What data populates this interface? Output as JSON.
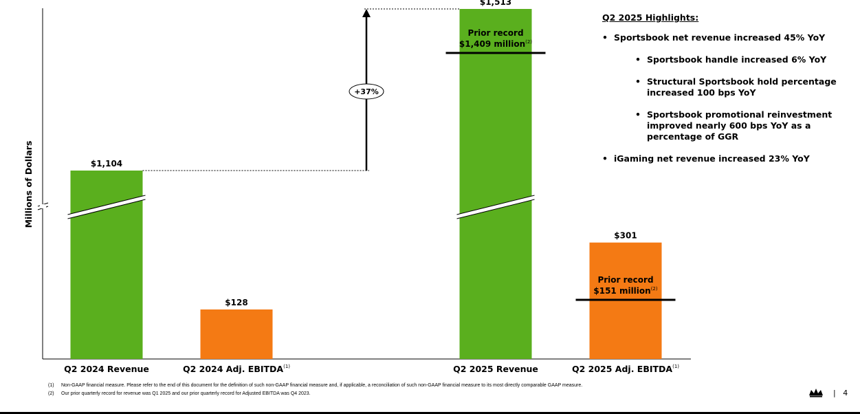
{
  "chart_data": {
    "type": "bar",
    "ylabel": "Millions of Dollars",
    "axis_break": true,
    "categories": [
      "Q2 2024 Revenue",
      "Q2 2024 Adj. EBITDA",
      "Q2 2025 Revenue",
      "Q2 2025 Adj. EBITDA"
    ],
    "category_superscripts": [
      "",
      "(1)",
      "",
      "(1)"
    ],
    "values": [
      1104,
      128,
      1513,
      301
    ],
    "value_labels": [
      "$1,104",
      "$128",
      "$1,513",
      "$301"
    ],
    "colors": [
      "#5aaf1e",
      "#f47a14",
      "#5aaf1e",
      "#f47a14"
    ],
    "growth_annotation": "+37%",
    "prior_records": [
      {
        "line1": "Prior record",
        "line2": "$1,409 million",
        "sup": "(2)",
        "value": 1409
      },
      {
        "line1": "Prior record",
        "line2": "$151 million",
        "sup": "(2)",
        "value": 151
      }
    ]
  },
  "highlights": {
    "title": "Q2 2025 Highlights:",
    "items": [
      {
        "text": "Sportsbook net revenue increased 45% YoY",
        "level": 0
      },
      {
        "text": "Sportsbook handle increased 6% YoY",
        "level": 1
      },
      {
        "text": "Structural Sportsbook hold percentage increased 100 bps YoY",
        "level": 1
      },
      {
        "text": "Sportsbook promotional reinvestment improved nearly 600 bps YoY as a percentage of GGR",
        "level": 1
      },
      {
        "text": "iGaming net revenue increased 23% YoY",
        "level": 0
      }
    ],
    "bullet": "•"
  },
  "footnotes": [
    {
      "num": "(1)",
      "text": "Non-GAAP financial measure. Please refer to the end of this document for the definition of such non-GAAP financial measure and, if applicable, a reconciliation of such non-GAAP financial measure to its most directly comparable GAAP measure."
    },
    {
      "num": "(2)",
      "text": "Our prior quarterly record for revenue was Q1 2025 and our prior quarterly record for Adjusted EBITDA was Q4 2023."
    }
  ],
  "page": {
    "separator": "|",
    "number": "4"
  },
  "logo_icon": "crown-icon"
}
